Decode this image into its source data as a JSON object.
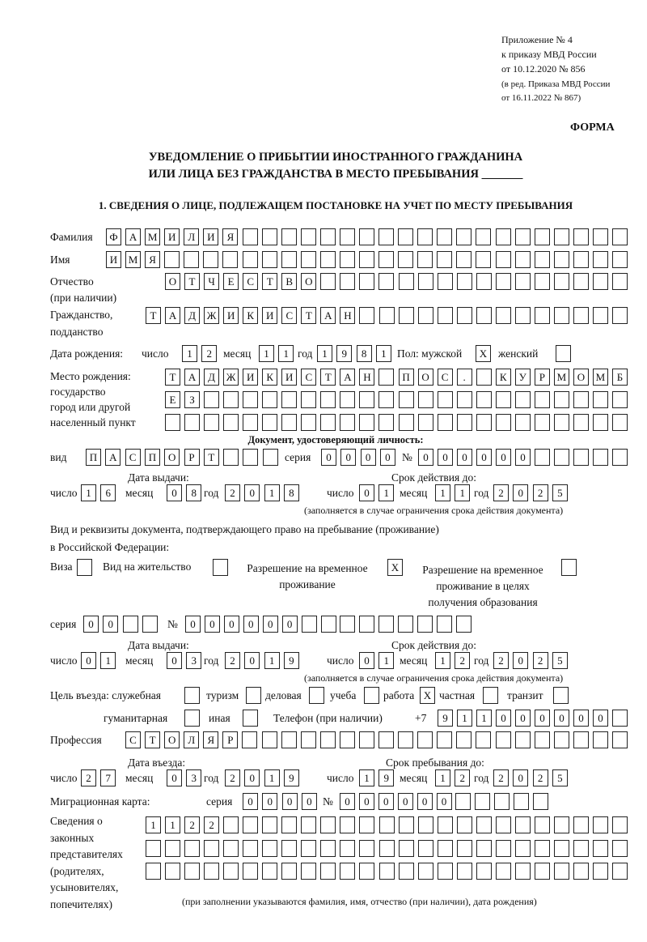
{
  "header": {
    "appendix": [
      "Приложение № 4",
      "к приказу МВД России",
      "от 10.12.2020 № 856"
    ],
    "edition": [
      "(в ред. Приказа МВД России",
      "от 16.11.2022 № 867)"
    ],
    "form_label": "ФОРМА",
    "title_line1": "УВЕДОМЛЕНИЕ О ПРИБЫТИИ ИНОСТРАННОГО ГРАЖДАНИНА",
    "title_line2": "ИЛИ ЛИЦА БЕЗ ГРАЖДАНСТВА В МЕСТО ПРЕБЫВАНИЯ _______",
    "section1": "1. СВЕДЕНИЯ О ЛИЦЕ, ПОДЛЕЖАЩЕМ ПОСТАНОВКЕ НА УЧЕТ ПО МЕСТУ ПРЕБЫВАНИЯ"
  },
  "labels": {
    "surname": "Фамилия",
    "name": "Имя",
    "patronymic": "Отчество",
    "patronymic_note": "(при наличии)",
    "citizenship1": "Гражданство,",
    "citizenship2": "подданство",
    "birth_date": "Дата рождения:",
    "day": "число",
    "month": "месяц",
    "year": "год",
    "sex": "Пол: мужской",
    "female": "женский",
    "birthplace1": "Место рождения:",
    "birthplace2": "государство",
    "birthplace3": "город или другой",
    "birthplace4": "населенный пункт",
    "id_doc": "Документ, удостоверяющий личность:",
    "kind": "вид",
    "series": "серия",
    "number": "№",
    "issue_date": "Дата выдачи:",
    "valid_until": "Срок действия до:",
    "validity_note": "(заполняется в случае ограничения срока действия документа)",
    "right_doc1": "Вид и реквизиты документа, подтверждающего право на пребывание (проживание)",
    "right_doc2": "в Российской Федерации:",
    "visa": "Виза",
    "residence": "Вид на жительство",
    "temp1": "Разрешение на временное",
    "temp2": "проживание",
    "edu1": "Разрешение на временное",
    "edu2": "проживание в целях",
    "edu3": "получения образования",
    "purpose": "Цель въезда: служебная",
    "tourism": "туризм",
    "business": "деловая",
    "study": "учеба",
    "work": "работа",
    "private": "частная",
    "transit": "транзит",
    "humanitarian": "гуманитарная",
    "other": "иная",
    "phone": "Телефон (при наличии)",
    "phone_prefix": "+7",
    "profession": "Профессия",
    "entry_date": "Дата въезда:",
    "stay_until": "Срок пребывания до:",
    "migration_card": "Миграционная карта:",
    "reps": [
      "Сведения о",
      "законных",
      "представителях",
      "(родителях,",
      "усыновителях,",
      "попечителях)"
    ],
    "reps_note": "(при заполнении указываются фамилия, имя, отчество (при наличии), дата рождения)"
  },
  "values": {
    "surname": "ФАМИЛИЯ",
    "name": "ИМЯ",
    "patronymic": "ОТЧЕСТВО",
    "citizenship": "ТАДЖИКИСТАН",
    "birth": {
      "day": "12",
      "month": "11",
      "year": "1981"
    },
    "sex_male": "X",
    "sex_female": "",
    "birthplace": [
      "ТАДЖИКИСТАН ПОС. КУРМОМБ",
      "ЕЗ",
      ""
    ],
    "id_kind": "ПАСПОРТ",
    "id_series": "0000",
    "id_number": "000000",
    "id_issue": {
      "day": "16",
      "month": "08",
      "year": "2018"
    },
    "id_valid": {
      "day": "01",
      "month": "11",
      "year": "2025"
    },
    "right_visa": "",
    "right_residence": "",
    "right_temp": "X",
    "right_edu": "",
    "right_series": "00",
    "right_number": "000000",
    "right_issue": {
      "day": "01",
      "month": "03",
      "year": "2019"
    },
    "right_valid": {
      "day": "01",
      "month": "12",
      "year": "2025"
    },
    "purpose": {
      "official": "",
      "tourism": "",
      "business": "",
      "study": "",
      "work": "X",
      "private": "",
      "transit": "",
      "humanitarian": "",
      "other": ""
    },
    "phone": "911000000",
    "profession": "СТОЛЯР",
    "entry": {
      "day": "27",
      "month": "03",
      "year": "2019"
    },
    "stay": {
      "day": "19",
      "month": "12",
      "year": "2025"
    },
    "mig_series": "0000",
    "mig_number": "000000",
    "reps": [
      "1122",
      "",
      ""
    ]
  }
}
